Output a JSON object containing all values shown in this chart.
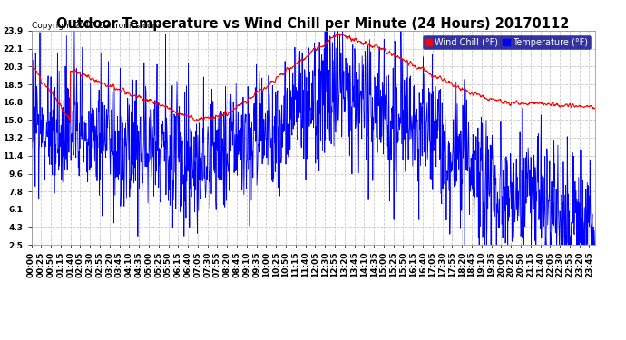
{
  "title": "Outdoor Temperature vs Wind Chill per Minute (24 Hours) 20170112",
  "copyright": "Copyright 2017 Cartronics.com",
  "legend_wind_chill": "Wind Chill (°F)",
  "legend_temperature": "Temperature (°F)",
  "wind_chill_color": "#ff0000",
  "temperature_color": "#0000ff",
  "background_color": "#ffffff",
  "plot_bg_color": "#ffffff",
  "grid_color": "#c8c8c8",
  "ylim_min": 2.5,
  "ylim_max": 23.9,
  "yticks": [
    2.5,
    4.3,
    6.1,
    7.8,
    9.6,
    11.4,
    13.2,
    15.0,
    16.8,
    18.5,
    20.3,
    22.1,
    23.9
  ],
  "title_fontsize": 10.5,
  "copyright_fontsize": 6.5,
  "tick_fontsize": 6.5,
  "legend_fontsize": 7,
  "num_minutes": 1440,
  "xtick_step": 25
}
